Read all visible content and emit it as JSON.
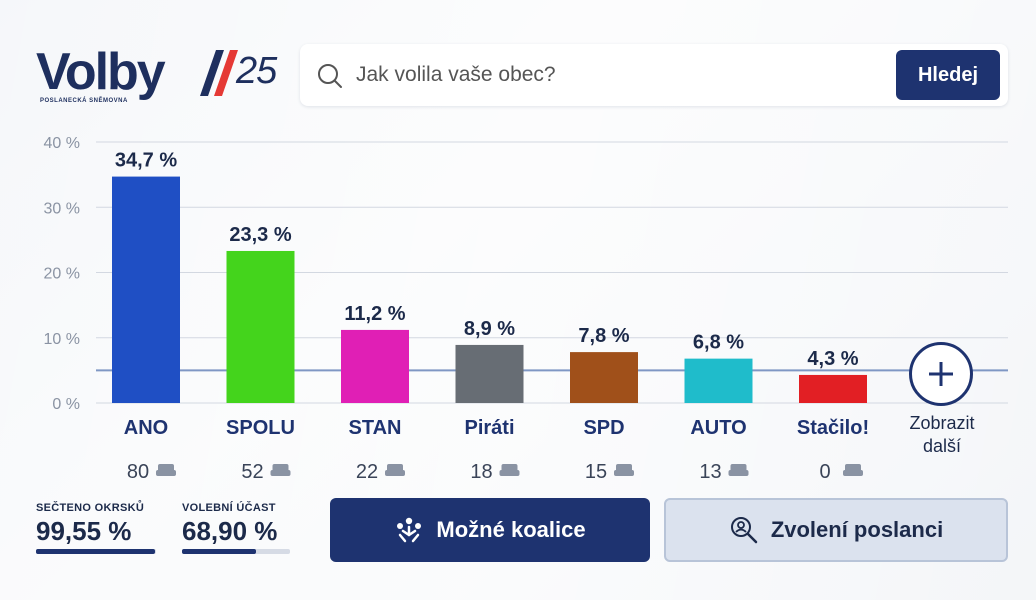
{
  "logo": {
    "main": "Volby",
    "num": "25",
    "sub": "POSLANECKÁ SNĚMOVNA"
  },
  "search": {
    "placeholder": "Jak volila vaše obec?",
    "button_label": "Hledej"
  },
  "colors": {
    "navy": "#1e3370",
    "accent_red": "#e53935"
  },
  "chart_data": {
    "type": "bar",
    "ylim": [
      0,
      40
    ],
    "yticks": [
      "0 %",
      "10 %",
      "20 %",
      "30 %",
      "40 %"
    ],
    "yticks_values": [
      0,
      10,
      20,
      30,
      40
    ],
    "threshold": 5,
    "grid": true,
    "categories": [
      "ANO",
      "SPOLU",
      "STAN",
      "Piráti",
      "SPD",
      "AUTO",
      "Stačilo!"
    ],
    "values": [
      34.7,
      23.3,
      11.2,
      8.9,
      7.8,
      6.8,
      4.3
    ],
    "value_labels": [
      "34,7 %",
      "23,3 %",
      "11,2 %",
      "8,9 %",
      "7,8 %",
      "6,8 %",
      "4,3 %"
    ],
    "seats": [
      80,
      52,
      22,
      18,
      15,
      13,
      0
    ],
    "bar_colors": [
      "#1f4fc4",
      "#44d41c",
      "#e01fb5",
      "#676d74",
      "#a0501a",
      "#1fbccb",
      "#e21f24"
    ]
  },
  "show_more": {
    "label_line1": "Zobrazit",
    "label_line2": "další"
  },
  "stats": {
    "counted": {
      "label": "SEČTENO OKRSKŮ",
      "value": "99,55 %",
      "fraction": 0.9955
    },
    "turnout": {
      "label": "VOLEBNÍ ÚČAST",
      "value": "68,90 %",
      "fraction": 0.689
    }
  },
  "actions": {
    "coalitions": "Možné koalice",
    "elected": "Zvolení poslanci"
  }
}
